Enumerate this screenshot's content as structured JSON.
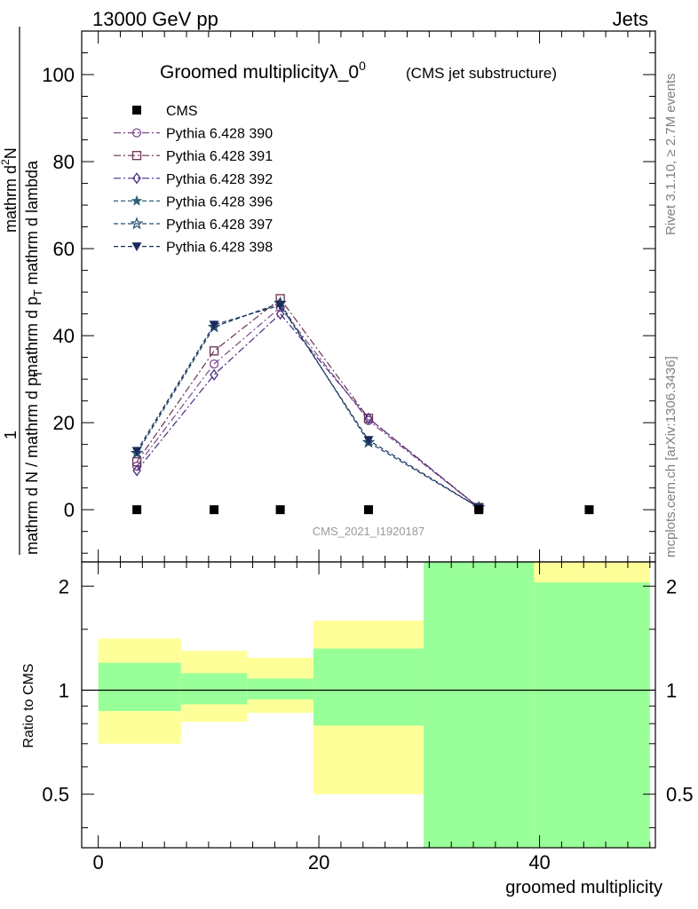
{
  "header": {
    "energy_label": "13000 GeV pp",
    "category_label": "Jets"
  },
  "side_labels": {
    "rivet": "Rivet 3.1.10, ≥ 2.7M events",
    "mcplots": "mcplots.cern.ch [arXiv:1306.3436]"
  },
  "analysis_id": "CMS_2021_I1920187",
  "chart_data": {
    "type": "line",
    "title": "Groomed multiplicityλ_0",
    "title_superscript": "0",
    "subtitle": "(CMS jet substructure)",
    "xlabel": "groomed multiplicity",
    "ylabel_parts": {
      "one": "1",
      "denominator": "mathrm d N / mathrm d p",
      "sub": "T",
      "numerator_line1": "mathrm d",
      "numerator_sup": "2",
      "numerator_line1b": "N",
      "numerator_line2": "mathrm d p",
      "numerator_sub": "T",
      "numerator_line2b": " mathrm d lambda"
    },
    "ratio_ylabel": "Ratio to CMS",
    "xlim": [
      -1.5,
      50.5
    ],
    "ylim": [
      -12,
      110
    ],
    "x_ticks": [
      0,
      20,
      40
    ],
    "y_ticks": [
      0,
      20,
      40,
      60,
      80,
      100
    ],
    "ratio_ylim": [
      0.35,
      2.35
    ],
    "ratio_ticks": [
      0.5,
      1,
      2
    ],
    "bins": [
      [
        0,
        7.5
      ],
      [
        7.5,
        13.5
      ],
      [
        13.5,
        19.5
      ],
      [
        19.5,
        29.5
      ],
      [
        29.5,
        39.5
      ],
      [
        39.5,
        50
      ]
    ],
    "data": {
      "name": "CMS",
      "x": [
        3.5,
        10.5,
        16.5,
        24.5,
        34.5,
        44.5
      ],
      "y": [
        0,
        0,
        0,
        0,
        0,
        0
      ]
    },
    "series": [
      {
        "name": "Pythia 6.428 390",
        "marker": "circle-open",
        "color": "#7a4a8c",
        "dash": "8 3 2 3",
        "x": [
          3.5,
          10.5,
          16.5,
          24.5,
          34.5
        ],
        "y": [
          10.0,
          33.5,
          46.5,
          20.5,
          0.5
        ]
      },
      {
        "name": "Pythia 6.428 391",
        "marker": "square-open",
        "color": "#6b3050",
        "dash": "8 3 2 3",
        "x": [
          3.5,
          10.5,
          16.5,
          24.5,
          34.5
        ],
        "y": [
          11.0,
          36.5,
          48.5,
          21.0,
          0.5
        ]
      },
      {
        "name": "Pythia 6.428 392",
        "marker": "diamond-open",
        "color": "#4a2a80",
        "dash": "8 3 2 3",
        "x": [
          3.5,
          10.5,
          16.5,
          24.5,
          34.5
        ],
        "y": [
          9.0,
          31.0,
          45.0,
          21.0,
          0.5
        ]
      },
      {
        "name": "Pythia 6.428 396",
        "marker": "star-filled",
        "color": "#2f5f78",
        "dash": "5 3",
        "x": [
          3.5,
          10.5,
          16.5,
          24.5,
          34.5
        ],
        "y": [
          13.0,
          42.0,
          47.5,
          15.5,
          0.5
        ]
      },
      {
        "name": "Pythia 6.428 397",
        "marker": "star-open",
        "color": "#284e6e",
        "dash": "5 3",
        "x": [
          3.5,
          10.5,
          16.5,
          24.5,
          34.5
        ],
        "y": [
          13.0,
          42.0,
          47.5,
          15.5,
          0.5
        ]
      },
      {
        "name": "Pythia 6.428 398",
        "marker": "triangle-down-filled",
        "color": "#1a2a5a",
        "dash": "5 3",
        "x": [
          3.5,
          10.5,
          16.5,
          24.5,
          34.5
        ],
        "y": [
          13.5,
          42.5,
          47.0,
          16.0,
          0.5
        ]
      }
    ],
    "ratio_bands": {
      "outer_color": "#ffff99",
      "inner_color": "#99ff99",
      "outer": [
        [
          0.7,
          1.41
        ],
        [
          0.81,
          1.3
        ],
        [
          0.86,
          1.24
        ],
        [
          0.5,
          1.59
        ],
        [
          0.3,
          2.4
        ],
        [
          0.3,
          2.4
        ]
      ],
      "inner": [
        [
          0.87,
          1.2
        ],
        [
          0.91,
          1.12
        ],
        [
          0.94,
          1.08
        ],
        [
          0.79,
          1.32
        ],
        [
          0.3,
          2.4
        ],
        [
          0.3,
          2.05
        ]
      ]
    }
  }
}
